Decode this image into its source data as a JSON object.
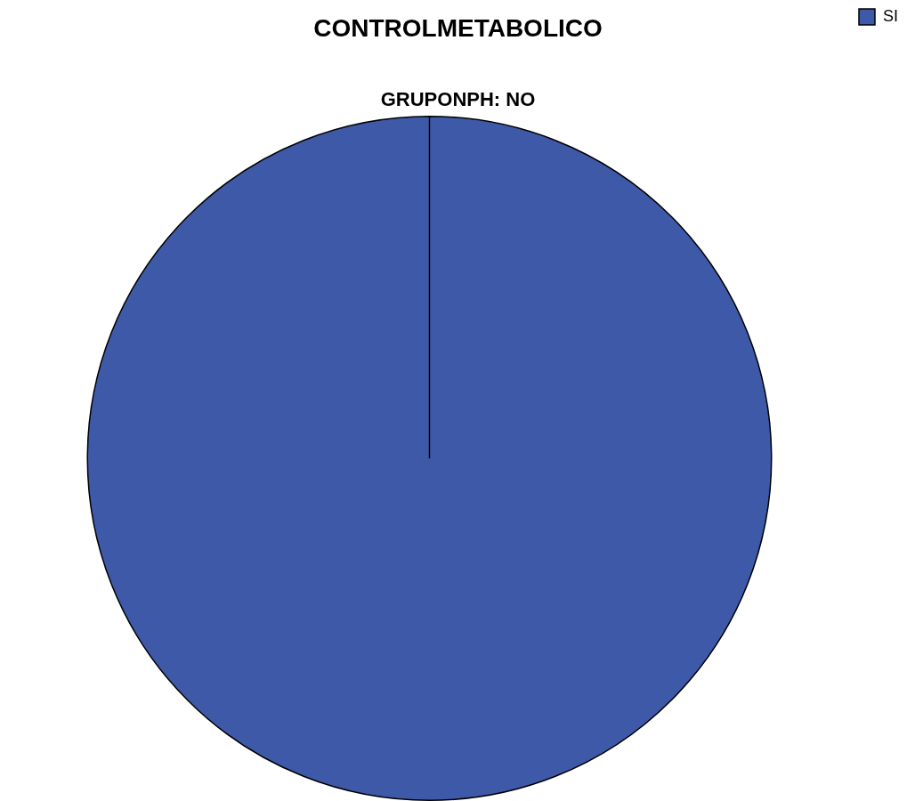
{
  "chart_data": {
    "type": "pie",
    "title": "CONTROLMETABOLICO",
    "subtitle": "GRUPONPH: NO",
    "categories": [
      "SI"
    ],
    "values": [
      100
    ],
    "colors": [
      "#3f59a9"
    ],
    "legend": "top right"
  }
}
